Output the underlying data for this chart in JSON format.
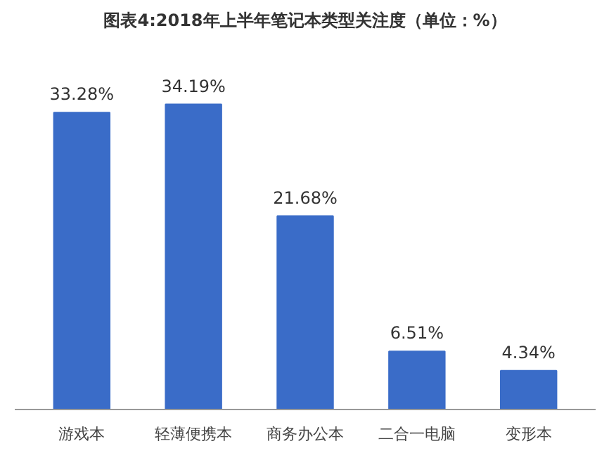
{
  "chart_data": {
    "type": "bar",
    "title": "图表4:2018年上半年笔记本类型关注度（单位：%）",
    "categories": [
      "游戏本",
      "轻薄便携本",
      "商务办公本",
      "二合一电脑",
      "变形本"
    ],
    "values": [
      33.28,
      34.19,
      21.68,
      6.51,
      4.34
    ],
    "value_labels": [
      "33.28%",
      "34.19%",
      "21.68%",
      "6.51%",
      "4.34%"
    ],
    "color": "#3a6cc8",
    "grid": false
  }
}
